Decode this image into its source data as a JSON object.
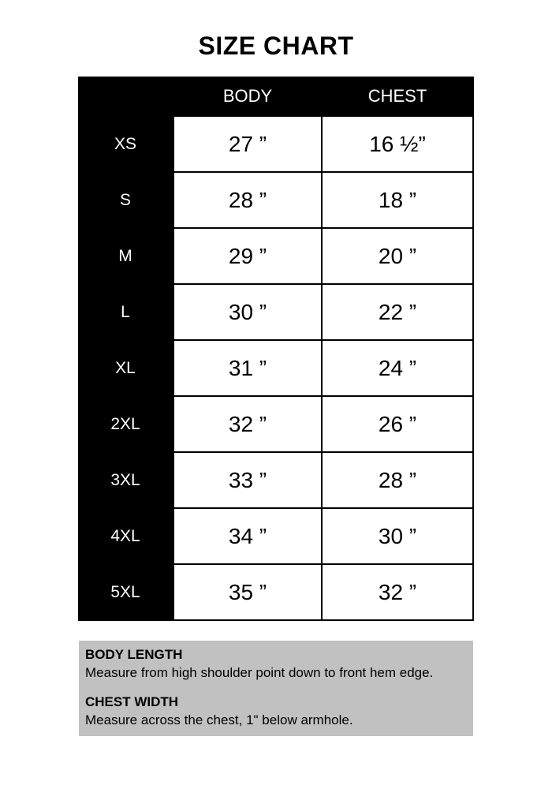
{
  "page": {
    "title": "SIZE CHART"
  },
  "size_chart": {
    "columns": [
      "BODY",
      "CHEST"
    ],
    "rows": [
      {
        "size": "XS",
        "body": "27 ”",
        "chest": "16 ½”"
      },
      {
        "size": "S",
        "body": "28 ”",
        "chest": "18 ”"
      },
      {
        "size": "M",
        "body": "29 ”",
        "chest": "20 ”"
      },
      {
        "size": "L",
        "body": "30 ”",
        "chest": "22 ”"
      },
      {
        "size": "XL",
        "body": "31 ”",
        "chest": "24 ”"
      },
      {
        "size": "2XL",
        "body": "32 ”",
        "chest": "26 ”"
      },
      {
        "size": "3XL",
        "body": "33 ”",
        "chest": "28 ”"
      },
      {
        "size": "4XL",
        "body": "34 ”",
        "chest": "30 ”"
      },
      {
        "size": "5XL",
        "body": "35 ”",
        "chest": "32 ”"
      }
    ]
  },
  "notes": {
    "body_length_title": "BODY LENGTH",
    "body_length_text": "Measure from high shoulder point down to front hem edge.",
    "chest_width_title": "CHEST WIDTH",
    "chest_width_text": "Measure across the chest, 1\" below armhole."
  },
  "colors": {
    "table_background": "#000000",
    "cell_background": "#ffffff",
    "notes_background": "#c1c1c1",
    "header_text": "#ffffff",
    "body_text": "#000000"
  }
}
